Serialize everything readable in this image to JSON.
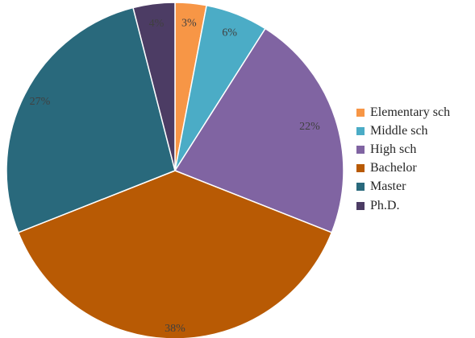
{
  "chart_data": {
    "type": "pie",
    "title": "",
    "categories": [
      "Elementary sch",
      "Middle sch",
      "High sch",
      "Bachelor",
      "Master",
      "Ph.D."
    ],
    "values": [
      3,
      6,
      22,
      38,
      27,
      4
    ],
    "value_suffix": "%",
    "colors": [
      "#F79646",
      "#4BACC6",
      "#8064A2",
      "#B85A04",
      "#29697C",
      "#4C3C64"
    ],
    "legend_position": "right",
    "start_angle": "12 o'clock",
    "direction": "clockwise"
  }
}
